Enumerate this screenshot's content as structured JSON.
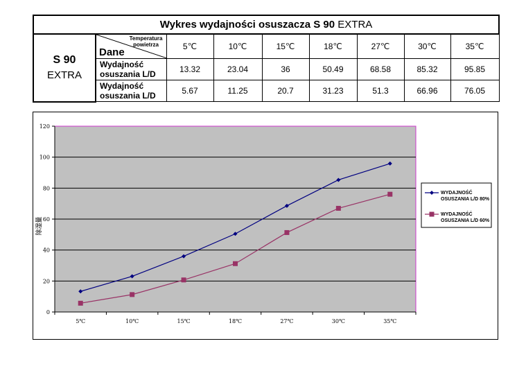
{
  "table": {
    "title_bold": "Wykres wydajności osuszacza S 90",
    "title_normal": "EXTRA",
    "model_line1": "S 90",
    "model_line2": "EXTRA",
    "corner_top_line1": "Temperatura",
    "corner_top_line2": "powietrza",
    "corner_bottom": "Dane",
    "temperatures": [
      "5℃",
      "10℃",
      "15℃",
      "18℃",
      "27℃",
      "30℃",
      "35℃"
    ],
    "rows": [
      {
        "label_line1": "Wydajność",
        "label_line2": "osuszania L/D",
        "values": [
          "13.32",
          "23.04",
          "36",
          "50.49",
          "68.58",
          "85.32",
          "95.85"
        ]
      },
      {
        "label_line1": "Wydajność",
        "label_line2": "osuszania L/D",
        "values": [
          "5.67",
          "11.25",
          "20.7",
          "31.23",
          "51.3",
          "66.96",
          "76.05"
        ]
      }
    ]
  },
  "chart_data": {
    "type": "line",
    "categories": [
      "5℃",
      "10℃",
      "15℃",
      "18℃",
      "27℃",
      "30℃",
      "35℃"
    ],
    "series": [
      {
        "name": "WYDAJNOŚĆ OSUSZANIA L/D 80%",
        "values": [
          13.32,
          23.04,
          36,
          50.49,
          68.58,
          85.32,
          95.85
        ],
        "color": "#000080",
        "marker": "diamond"
      },
      {
        "name": "WYDAJNOŚĆ OSUSZANIA L/D 60%",
        "values": [
          5.67,
          11.25,
          20.7,
          31.23,
          51.3,
          66.96,
          76.05
        ],
        "color": "#993366",
        "marker": "square"
      }
    ],
    "yticks": [
      "0",
      "20",
      "40",
      "60",
      "80",
      "100",
      "120"
    ],
    "ylim": [
      0,
      120
    ],
    "ylabel": "除湿量",
    "grid": true,
    "legend": "right",
    "plot_background": "#c0c0c0",
    "plot_border": "#cc33cc"
  }
}
